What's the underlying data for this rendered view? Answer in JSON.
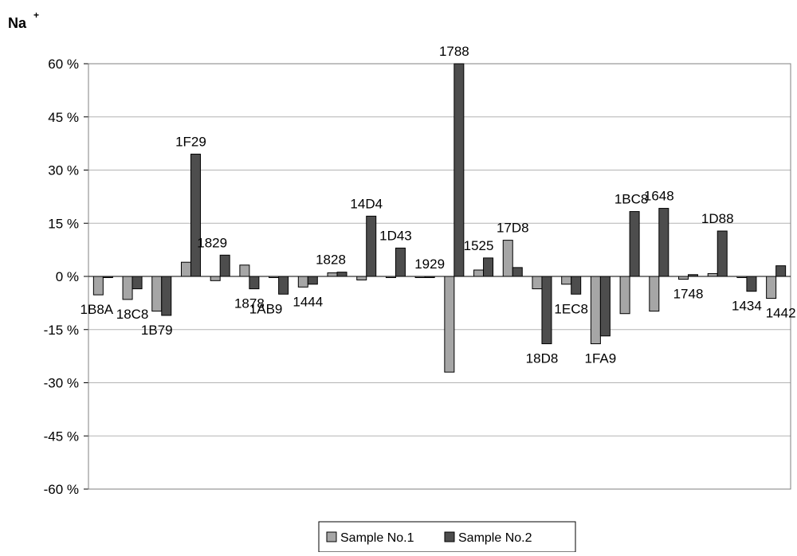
{
  "chart_data": {
    "type": "bar",
    "title": "Na",
    "title_superscript": "+",
    "xlabel": "",
    "ylabel": "",
    "ylim": [
      -60,
      60
    ],
    "ytick_values": [
      60,
      45,
      30,
      15,
      0,
      -15,
      -30,
      -45,
      -60
    ],
    "ytick_labels": [
      "60 %",
      "45 %",
      "30 %",
      "15 %",
      "0 %",
      "-15 %",
      "-30 %",
      "-45 %",
      "-60 %"
    ],
    "grid": true,
    "legend_position": "bottom-center",
    "categories": [
      "1B8A",
      "18C8",
      "1B79",
      "1F29",
      "1829",
      "1878",
      "1AB9",
      "1444",
      "1828",
      "14D4",
      "1D43",
      "1929",
      "1788",
      "1525",
      "17D8",
      "18D8",
      "1EC8",
      "1FA9",
      "1BC8",
      "1648",
      "1748",
      "1D88",
      "1434",
      "1442"
    ],
    "series": [
      {
        "name": "Sample No.1",
        "color": "#a6a6a6",
        "values": [
          -5.2,
          -6.5,
          -9.8,
          4.0,
          -1.2,
          3.2,
          0,
          -3.0,
          1.0,
          -1.0,
          0,
          0,
          -27.0,
          1.8,
          10.2,
          -3.5,
          -2.2,
          -19.0,
          -10.5,
          -9.8,
          -0.8,
          0.8,
          0,
          -6.2
        ]
      },
      {
        "name": "Sample No.2",
        "color": "#4d4d4d",
        "values": [
          0,
          -3.5,
          -11.0,
          34.5,
          6.0,
          -3.5,
          -5.0,
          -2.2,
          1.2,
          17.0,
          8.0,
          0,
          62.0,
          5.2,
          2.5,
          -19.0,
          -5.0,
          -16.8,
          18.3,
          19.2,
          0.5,
          12.8,
          -4.2,
          3.0
        ]
      }
    ]
  }
}
